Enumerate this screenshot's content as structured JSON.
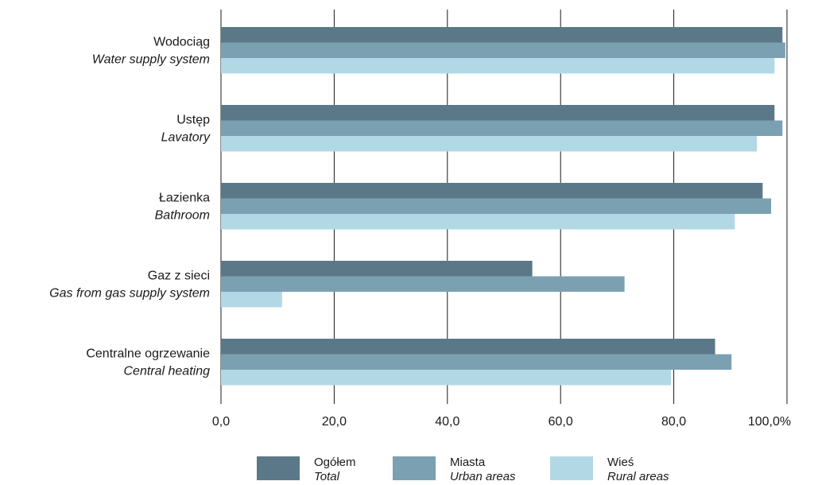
{
  "chart_data": {
    "type": "bar",
    "orientation": "horizontal",
    "categories": [
      {
        "label": "Wodociąg",
        "sublabel": "Water supply system"
      },
      {
        "label": "Ustęp",
        "sublabel": "Lavatory"
      },
      {
        "label": "Łazienka",
        "sublabel": "Bathroom"
      },
      {
        "label": "Gaz z sieci",
        "sublabel": "Gas from gas supply system"
      },
      {
        "label": "Centralne ogrzewanie",
        "sublabel": "Central heating"
      }
    ],
    "series": [
      {
        "name": "Ogółem",
        "subname": "Total",
        "color": "#5b7888",
        "values": [
          99.2,
          97.8,
          95.7,
          55.0,
          87.3
        ]
      },
      {
        "name": "Miasta",
        "subname": "Urban areas",
        "color": "#7ba0b2",
        "values": [
          99.7,
          99.2,
          97.2,
          71.3,
          90.2
        ]
      },
      {
        "name": "Wieś",
        "subname": "Rural areas",
        "color": "#b3d8e5",
        "values": [
          97.8,
          94.7,
          90.8,
          10.8,
          79.5
        ]
      }
    ],
    "xlim": [
      0,
      100
    ],
    "xticks": [
      "0,0",
      "20,0",
      "40,0",
      "60,0",
      "80,0",
      "100,0%"
    ],
    "grid": true,
    "legend_position": "bottom"
  }
}
